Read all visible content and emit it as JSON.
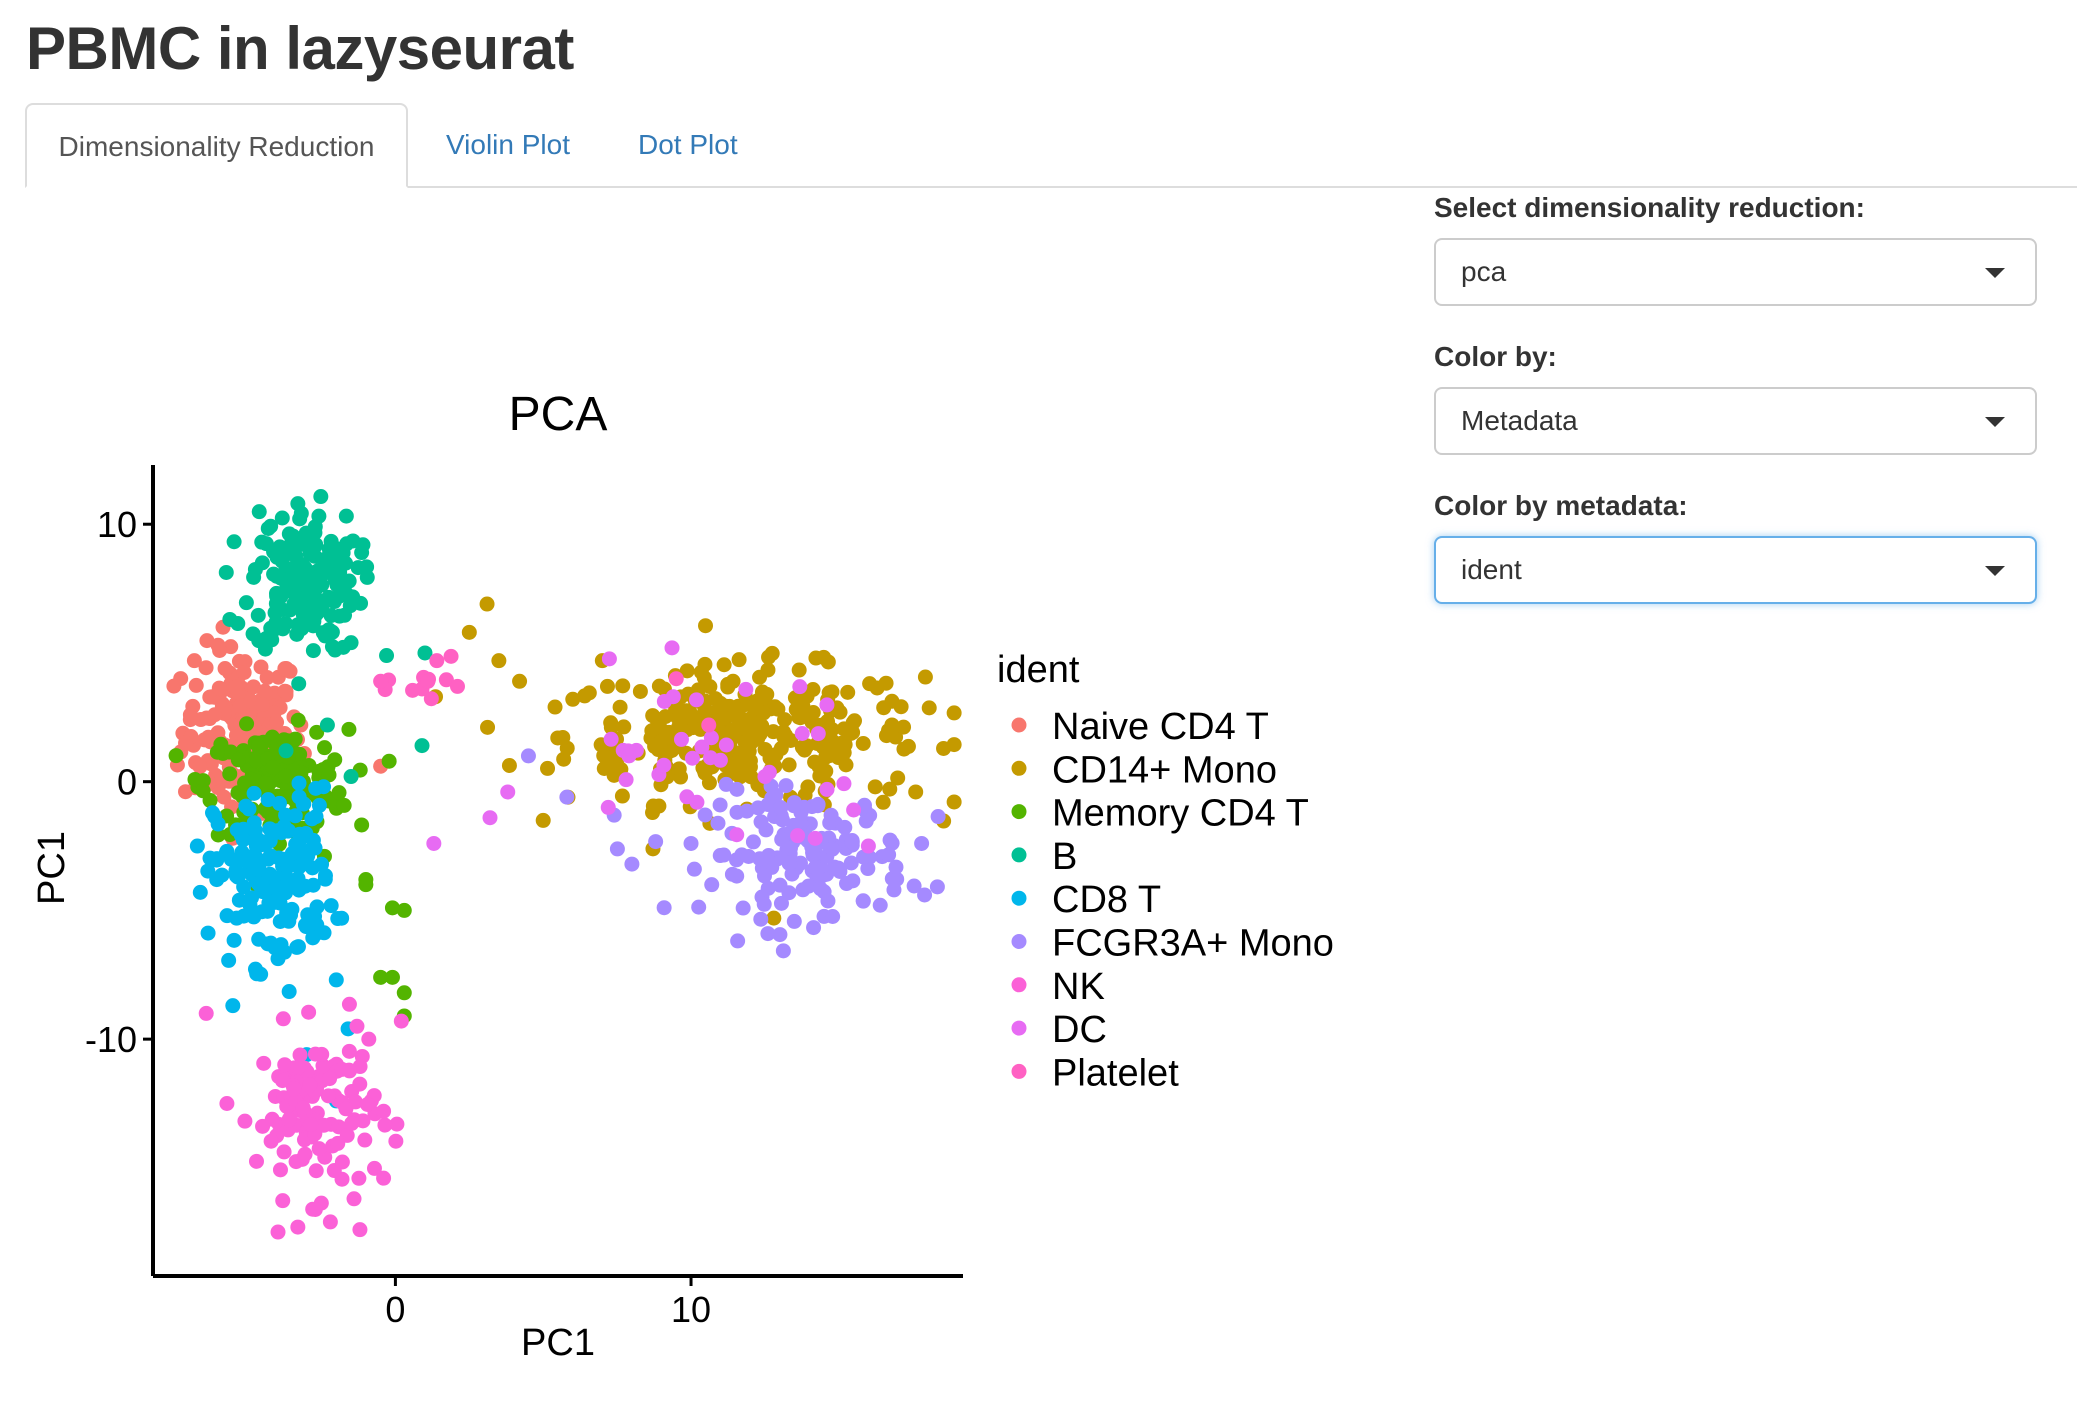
{
  "app": {
    "title": "PBMC in lazyseurat"
  },
  "tabs": [
    {
      "label": "Dimensionality Reduction",
      "active": true
    },
    {
      "label": "Violin Plot",
      "active": false
    },
    {
      "label": "Dot Plot",
      "active": false
    }
  ],
  "controls": {
    "reduction": {
      "label": "Select dimensionality reduction:",
      "value": "pca"
    },
    "color_by": {
      "label": "Color by:",
      "value": "Metadata"
    },
    "color_by_metadata": {
      "label": "Color by metadata:",
      "value": "ident"
    }
  },
  "colors": {
    "tab_link": "#337ab7",
    "focus_border": "#66afe9"
  },
  "chart_data": {
    "type": "scatter",
    "title": "PCA",
    "xlabel": "PC1",
    "ylabel": "PC1",
    "xticks": [
      0,
      10
    ],
    "yticks": [
      10,
      0,
      -10
    ],
    "xlim": [
      -8.2,
      19.2
    ],
    "ylim": [
      -19.2,
      12.3
    ],
    "legend_title": "ident",
    "legend_position": "right",
    "grid": false,
    "series": [
      {
        "name": "Naive CD4 T",
        "color": "#F8766D",
        "cluster": {
          "cx": -5.2,
          "cy": 2.0,
          "sx": 1.0,
          "sy": 1.6,
          "n": 170
        },
        "points": [
          [
            -6.8,
            4.7
          ],
          [
            -6.0,
            5.3
          ],
          [
            -4.5,
            3.0
          ],
          [
            -3.7,
            3.5
          ],
          [
            -7.1,
            1.5
          ],
          [
            -5.8,
            -0.6
          ],
          [
            -0.5,
            0.6
          ],
          [
            -3.2,
            2.2
          ]
        ]
      },
      {
        "name": "CD14+ Mono",
        "color": "#C49A00",
        "cluster": {
          "cx": 11.8,
          "cy": 1.8,
          "sx": 3.0,
          "sy": 1.3,
          "n": 290
        },
        "points": [
          [
            2.5,
            5.8
          ],
          [
            3.1,
            6.9
          ],
          [
            3.5,
            4.7
          ],
          [
            4.2,
            3.9
          ],
          [
            5.4,
            2.9
          ],
          [
            6.0,
            3.2
          ],
          [
            7.0,
            4.7
          ],
          [
            16.5,
            -0.8
          ],
          [
            17.6,
            -0.4
          ],
          [
            12.8,
            -5.3
          ]
        ]
      },
      {
        "name": "Memory CD4 T",
        "color": "#53B400",
        "cluster": {
          "cx": -4.0,
          "cy": 0.0,
          "sx": 1.2,
          "sy": 1.0,
          "n": 160
        },
        "points": [
          [
            -1.0,
            -4.0
          ],
          [
            -0.1,
            -4.9
          ],
          [
            0.3,
            -5.0
          ],
          [
            -0.5,
            -7.6
          ],
          [
            -0.1,
            -7.6
          ],
          [
            0.3,
            -8.2
          ],
          [
            0.3,
            -9.1
          ],
          [
            -1.0,
            -3.8
          ],
          [
            -2.4,
            -2.9
          ]
        ]
      },
      {
        "name": "B",
        "color": "#00C094",
        "cluster": {
          "cx": -3.1,
          "cy": 7.8,
          "sx": 0.9,
          "sy": 1.4,
          "n": 180
        },
        "points": [
          [
            -3.3,
            10.8
          ],
          [
            -4.5,
            8.5
          ],
          [
            -5.6,
            6.3
          ],
          [
            -1.5,
            5.4
          ],
          [
            -0.3,
            4.9
          ],
          [
            0.9,
            1.4
          ],
          [
            1.0,
            5.0
          ],
          [
            -2.3,
            2.2
          ],
          [
            -1.5,
            0.2
          ],
          [
            -3.7,
            1.2
          ]
        ]
      },
      {
        "name": "CD8 T",
        "color": "#00B6EB",
        "cluster": {
          "cx": -4.1,
          "cy": -3.7,
          "sx": 1.0,
          "sy": 1.7,
          "n": 170
        },
        "points": [
          [
            -6.7,
            -2.5
          ],
          [
            -6.6,
            -4.3
          ],
          [
            -5.5,
            -8.7
          ],
          [
            -2.0,
            -7.7
          ],
          [
            -2.0,
            -12.4
          ],
          [
            -3.0,
            -10.6
          ],
          [
            -1.6,
            -9.6
          ]
        ]
      },
      {
        "name": "FCGR3A+ Mono",
        "color": "#A58AFF",
        "cluster": {
          "cx": 13.9,
          "cy": -2.8,
          "sx": 1.7,
          "sy": 1.2,
          "n": 150
        },
        "points": [
          [
            4.5,
            1.0
          ],
          [
            5.8,
            -0.6
          ],
          [
            7.4,
            -1.3
          ],
          [
            8.0,
            -3.2
          ],
          [
            10.7,
            -4.0
          ],
          [
            10.0,
            -2.4
          ],
          [
            11.4,
            -3.6
          ],
          [
            12.6,
            -5.9
          ],
          [
            16.4,
            -4.8
          ],
          [
            17.9,
            -4.4
          ],
          [
            17.8,
            -2.4
          ]
        ]
      },
      {
        "name": "NK",
        "color": "#FB61D7",
        "cluster": {
          "cx": -2.7,
          "cy": -12.8,
          "sx": 1.0,
          "sy": 1.6,
          "n": 120
        },
        "points": [
          [
            -6.4,
            -9.0
          ],
          [
            -5.7,
            -12.5
          ],
          [
            -3.3,
            -17.3
          ],
          [
            -2.2,
            -17.1
          ],
          [
            -1.2,
            -17.4
          ],
          [
            -1.4,
            -16.2
          ],
          [
            -0.4,
            -15.4
          ],
          [
            -0.4,
            -12.8
          ],
          [
            -1.3,
            -9.5
          ],
          [
            -0.9,
            -10.0
          ],
          [
            0.2,
            -9.3
          ]
        ]
      },
      {
        "name": "DC",
        "color": "#E76BF3",
        "cluster": {
          "cx": 10.5,
          "cy": 1.4,
          "sx": 2.8,
          "sy": 1.4,
          "n": 28
        },
        "points": [
          [
            1.3,
            -2.4
          ],
          [
            3.2,
            -1.4
          ],
          [
            3.8,
            -0.4
          ],
          [
            7.2,
            -1.0
          ],
          [
            7.9,
            1.0
          ],
          [
            9.4,
            3.3
          ],
          [
            10.2,
            -0.8
          ],
          [
            12.5,
            0.2
          ],
          [
            14.6,
            -0.3
          ],
          [
            15.5,
            -1.1
          ],
          [
            16.0,
            -2.5
          ],
          [
            14.2,
            -2.2
          ]
        ]
      },
      {
        "name": "Platelet",
        "color": "#FF61C3",
        "cluster": {
          "cx": 1.5,
          "cy": 4.0,
          "sx": 0.7,
          "sy": 0.7,
          "n": 8
        },
        "points": [
          [
            -0.5,
            3.9
          ],
          [
            0.9,
            3.6
          ],
          [
            1.4,
            4.7
          ],
          [
            1.1,
            3.9
          ],
          [
            2.1,
            3.7
          ],
          [
            9.5,
            4.0
          ],
          [
            10.6,
            2.2
          ]
        ]
      }
    ]
  }
}
